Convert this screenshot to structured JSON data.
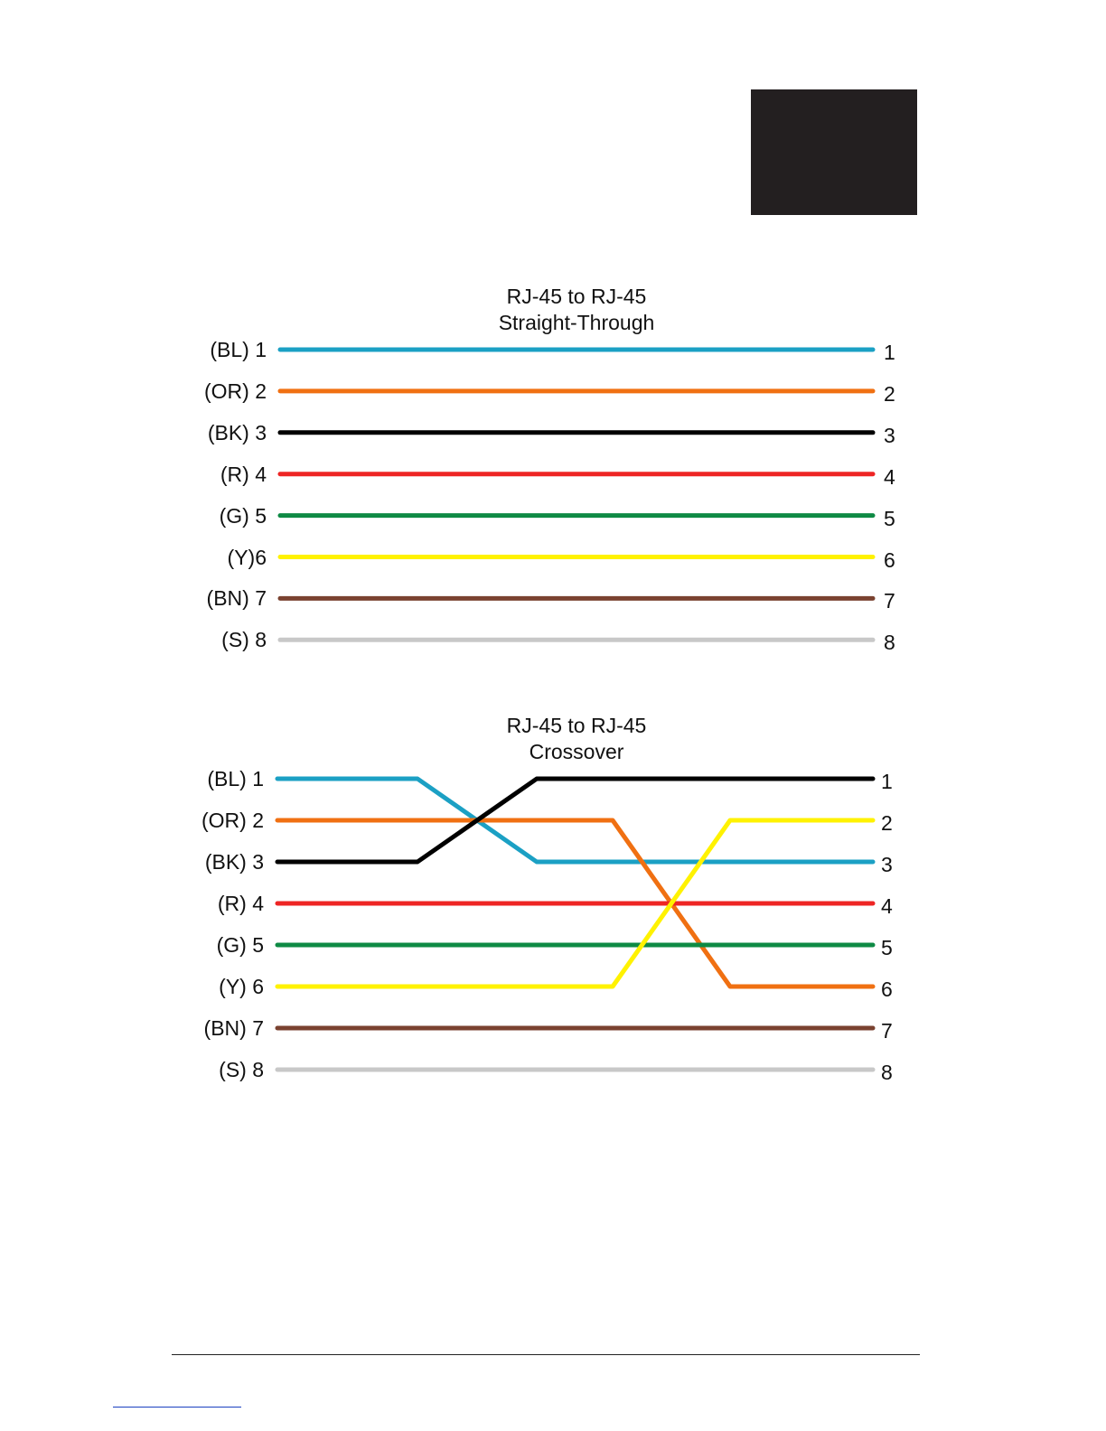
{
  "colors": {
    "BL": "#1ba0c4",
    "OR": "#f07012",
    "BK": "#000000",
    "R": "#ee2524",
    "G": "#0e8a44",
    "Y": "#fff200",
    "BN": "#7a4230",
    "S": "#c8c8c8"
  },
  "straight": {
    "title_line1": "RJ-45 to RJ-45",
    "title_line2": "Straight-Through",
    "left_labels": [
      "(BL) 1",
      "(OR) 2",
      "(BK) 3",
      "(R) 4",
      "(G) 5",
      "(Y)6",
      "(BN) 7",
      "(S) 8"
    ],
    "right_labels": [
      "1",
      "2",
      "3",
      "4",
      "5",
      "6",
      "7",
      "8"
    ],
    "wires": [
      {
        "color": "BL",
        "from": 1,
        "to": 1
      },
      {
        "color": "OR",
        "from": 2,
        "to": 2
      },
      {
        "color": "BK",
        "from": 3,
        "to": 3
      },
      {
        "color": "R",
        "from": 4,
        "to": 4
      },
      {
        "color": "G",
        "from": 5,
        "to": 5
      },
      {
        "color": "Y",
        "from": 6,
        "to": 6
      },
      {
        "color": "BN",
        "from": 7,
        "to": 7
      },
      {
        "color": "S",
        "from": 8,
        "to": 8
      }
    ]
  },
  "crossover": {
    "title_line1": "RJ-45 to RJ-45",
    "title_line2": "Crossover",
    "left_labels": [
      "(BL) 1",
      "(OR) 2",
      "(BK) 3",
      "(R) 4",
      "(G) 5",
      "(Y) 6",
      "(BN) 7",
      "(S) 8"
    ],
    "right_labels": [
      "1",
      "2",
      "3",
      "4",
      "5",
      "6",
      "7",
      "8"
    ],
    "wires": [
      {
        "color": "BL",
        "from": 1,
        "to": 3
      },
      {
        "color": "OR",
        "from": 2,
        "to": 6
      },
      {
        "color": "BK",
        "from": 3,
        "to": 1
      },
      {
        "color": "R",
        "from": 4,
        "to": 4
      },
      {
        "color": "G",
        "from": 5,
        "to": 5
      },
      {
        "color": "Y",
        "from": 6,
        "to": 2
      },
      {
        "color": "BN",
        "from": 7,
        "to": 7
      },
      {
        "color": "S",
        "from": 8,
        "to": 8
      }
    ]
  }
}
